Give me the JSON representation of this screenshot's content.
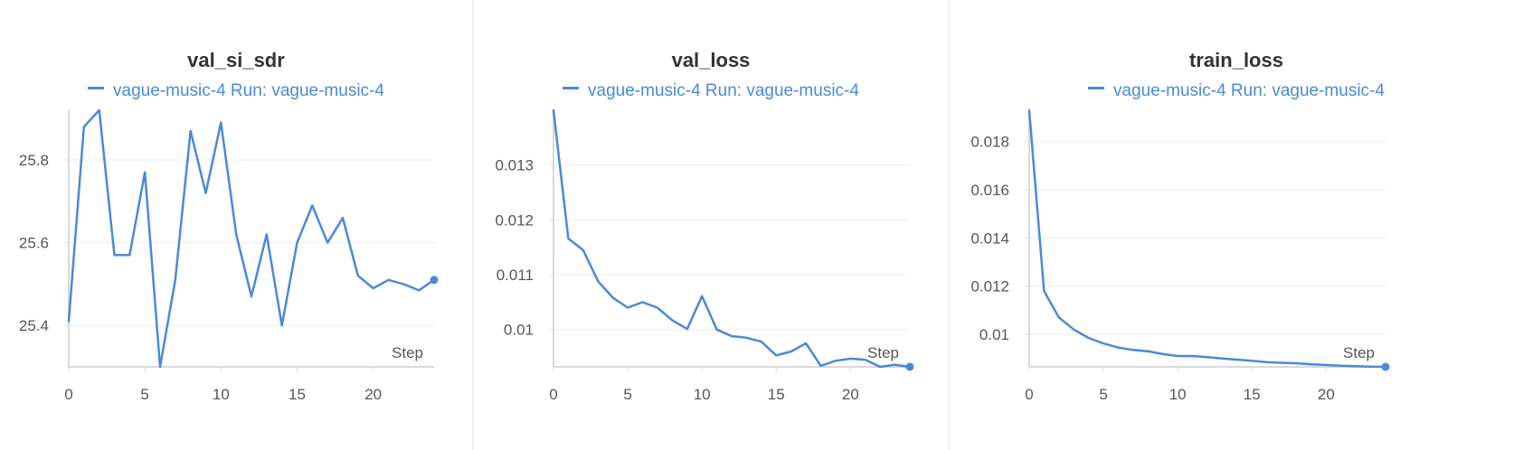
{
  "colors": {
    "line": "#4a8ad6",
    "axis": "#d9d9d9",
    "grid": "#ececec",
    "text": "#555555",
    "title": "#333333"
  },
  "chart_data": [
    {
      "type": "line",
      "title": "val_si_sdr",
      "legend": "vague-music-4 Run: vague-music-4",
      "xlabel": "Step",
      "xlim": [
        0,
        24
      ],
      "ylim": [
        25.3,
        25.92
      ],
      "xticks": [
        0,
        5,
        10,
        15,
        20
      ],
      "yticks": [
        25.4,
        25.6,
        25.8
      ],
      "ytick_labels": [
        "25.4",
        "25.6",
        "25.8"
      ],
      "grid": true,
      "series": [
        {
          "name": "vague-music-4",
          "x": [
            0,
            1,
            2,
            3,
            4,
            5,
            6,
            7,
            8,
            9,
            10,
            11,
            12,
            13,
            14,
            15,
            16,
            17,
            18,
            19,
            20,
            21,
            22,
            23,
            24
          ],
          "y": [
            25.41,
            25.88,
            25.92,
            25.57,
            25.57,
            25.77,
            25.3,
            25.51,
            25.87,
            25.72,
            25.89,
            25.62,
            25.47,
            25.62,
            25.4,
            25.6,
            25.69,
            25.6,
            25.66,
            25.52,
            25.49,
            25.51,
            25.5,
            25.485,
            25.51
          ]
        }
      ]
    },
    {
      "type": "line",
      "title": "val_loss",
      "legend": "vague-music-4 Run: vague-music-4",
      "xlabel": "Step",
      "xlim": [
        0,
        24
      ],
      "ylim": [
        0.00932,
        0.014
      ],
      "xticks": [
        0,
        5,
        10,
        15,
        20
      ],
      "yticks": [
        0.01,
        0.011,
        0.012,
        0.013
      ],
      "ytick_labels": [
        "0.01",
        "0.011",
        "0.012",
        "0.013"
      ],
      "grid": true,
      "series": [
        {
          "name": "vague-music-4",
          "x": [
            0,
            1,
            2,
            3,
            4,
            5,
            6,
            7,
            8,
            9,
            10,
            11,
            12,
            13,
            14,
            15,
            16,
            17,
            18,
            19,
            20,
            21,
            22,
            23,
            24
          ],
          "y": [
            0.014,
            0.01166,
            0.01145,
            0.01088,
            0.01058,
            0.0104,
            0.0105,
            0.0104,
            0.01017,
            0.01001,
            0.01061,
            0.01,
            0.00988,
            0.00985,
            0.00978,
            0.00953,
            0.0096,
            0.00975,
            0.00934,
            0.00943,
            0.00947,
            0.00945,
            0.00932,
            0.00936,
            0.00932
          ]
        }
      ]
    },
    {
      "type": "line",
      "title": "train_loss",
      "legend": "vague-music-4 Run: vague-music-4",
      "xlabel": "Step",
      "xlim": [
        0,
        24
      ],
      "ylim": [
        0.00865,
        0.0193
      ],
      "xticks": [
        0,
        5,
        10,
        15,
        20
      ],
      "yticks": [
        0.01,
        0.012,
        0.014,
        0.016,
        0.018
      ],
      "ytick_labels": [
        "0.01",
        "0.012",
        "0.014",
        "0.016",
        "0.018"
      ],
      "grid": true,
      "series": [
        {
          "name": "vague-music-4",
          "x": [
            0,
            1,
            2,
            3,
            4,
            5,
            6,
            7,
            8,
            9,
            10,
            11,
            12,
            13,
            14,
            15,
            16,
            17,
            18,
            19,
            20,
            21,
            22,
            23,
            24
          ],
          "y": [
            0.0193,
            0.0118,
            0.0107,
            0.0102,
            0.00985,
            0.00962,
            0.00945,
            0.00935,
            0.0093,
            0.00918,
            0.0091,
            0.0091,
            0.00905,
            0.009,
            0.00895,
            0.0089,
            0.00885,
            0.00882,
            0.0088,
            0.00876,
            0.00873,
            0.0087,
            0.00868,
            0.00866,
            0.00865
          ]
        }
      ]
    }
  ]
}
